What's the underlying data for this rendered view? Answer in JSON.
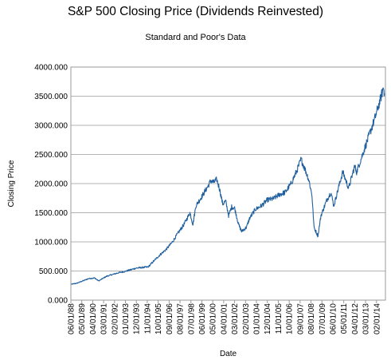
{
  "chart_data": {
    "type": "line",
    "title": "S&P 500 Closing Price (Dividends Reinvested)",
    "subtitle": "Standard and Poor's Data",
    "xlabel": "Date",
    "ylabel": "Closing Price",
    "ylim": [
      0,
      4000
    ],
    "yticks": [
      "0.000",
      "500.000",
      "1000.000",
      "1500.000",
      "2000.000",
      "2500.000",
      "3000.000",
      "3500.000",
      "4000.000"
    ],
    "xticks": [
      "06/01/88",
      "05/01/89",
      "04/01/90",
      "03/01/91",
      "02/01/92",
      "01/01/93",
      "12/01/93",
      "11/01/94",
      "10/01/95",
      "09/01/96",
      "08/01/97",
      "07/01/98",
      "06/01/99",
      "05/01/00",
      "04/01/01",
      "03/01/02",
      "02/01/03",
      "01/01/04",
      "12/01/04",
      "11/01/05",
      "10/01/06",
      "09/01/07",
      "08/01/08",
      "07/01/09",
      "06/01/10",
      "05/01/11",
      "04/01/12",
      "03/01/13",
      "02/01/14"
    ],
    "grid": true,
    "legend": "none",
    "line_color": "#1f5f9e",
    "series": [
      {
        "x": [
          "1988-06",
          "1988-12",
          "1989-06",
          "1989-12",
          "1990-06",
          "1990-10",
          "1991-06",
          "1991-12",
          "1992-06",
          "1992-12",
          "1993-06",
          "1993-12",
          "1994-06",
          "1994-12",
          "1995-06",
          "1995-12",
          "1996-06",
          "1996-12",
          "1997-06",
          "1997-12",
          "1998-06",
          "1998-09",
          "1998-12",
          "1999-06",
          "1999-12",
          "2000-03",
          "2000-06",
          "2000-09",
          "2000-12",
          "2001-03",
          "2001-06",
          "2001-09",
          "2001-12",
          "2002-03",
          "2002-07",
          "2002-10",
          "2003-03",
          "2003-06",
          "2003-12",
          "2004-06",
          "2004-12",
          "2005-06",
          "2005-12",
          "2006-06",
          "2006-12",
          "2007-06",
          "2007-10",
          "2008-03",
          "2008-06",
          "2008-09",
          "2008-11",
          "2009-03",
          "2009-06",
          "2009-12",
          "2010-04",
          "2010-07",
          "2010-12",
          "2011-04",
          "2011-10",
          "2011-12",
          "2012-04",
          "2012-06",
          "2012-12",
          "2013-06",
          "2013-12",
          "2014-06",
          "2014-09",
          "2014-10"
        ],
        "values": [
          270,
          290,
          330,
          370,
          380,
          330,
          410,
          440,
          470,
          490,
          520,
          550,
          560,
          570,
          680,
          780,
          870,
          990,
          1150,
          1300,
          1500,
          1300,
          1620,
          1780,
          1950,
          2050,
          2020,
          2070,
          1900,
          1650,
          1700,
          1450,
          1600,
          1580,
          1300,
          1180,
          1250,
          1400,
          1560,
          1620,
          1720,
          1740,
          1810,
          1850,
          2000,
          2230,
          2420,
          2200,
          2050,
          1800,
          1250,
          1100,
          1450,
          1720,
          1850,
          1620,
          1950,
          2200,
          1920,
          2050,
          2300,
          2200,
          2500,
          2800,
          3100,
          3450,
          3650,
          3550
        ]
      }
    ]
  }
}
